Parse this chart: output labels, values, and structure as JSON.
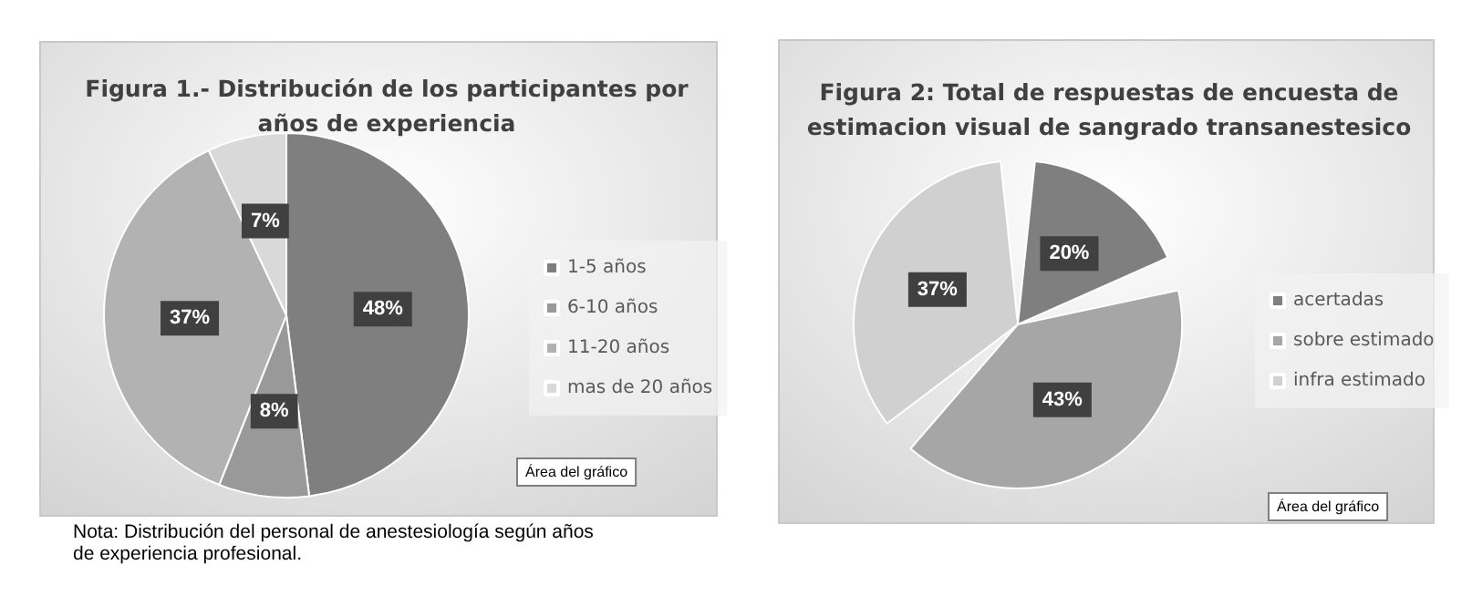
{
  "chart_data": [
    {
      "type": "pie",
      "title": "Figura 1.- Distribución de los participantes por\naños de experiencia",
      "categories": [
        "1-5 años",
        "6-10 años",
        "11-20 años",
        "mas de 20 años"
      ],
      "values": [
        48,
        8,
        37,
        7
      ],
      "colors": [
        "#7f7f7f",
        "#999999",
        "#b2b2b2",
        "#d9d9d9"
      ],
      "value_labels": [
        "48%",
        "8%",
        "37%",
        "7%"
      ],
      "legend": "right",
      "annotations": [
        "Área del gráfico",
        "Nota: Distribución del personal de anestesiología según años\nde experiencia profesional."
      ]
    },
    {
      "type": "pie",
      "title": "Figura 2: Total de respuestas de encuesta de\nestimacion visual de sangrado transanestesico",
      "categories": [
        "acertadas",
        "sobre estimado",
        "infra estimado"
      ],
      "values": [
        20,
        43,
        37
      ],
      "colors": [
        "#7f7f7f",
        "#a6a6a6",
        "#d0d0d0"
      ],
      "value_labels": [
        "20%",
        "43%",
        "37%"
      ],
      "legend": "right",
      "annotations": [
        "Área del gráfico"
      ]
    }
  ]
}
